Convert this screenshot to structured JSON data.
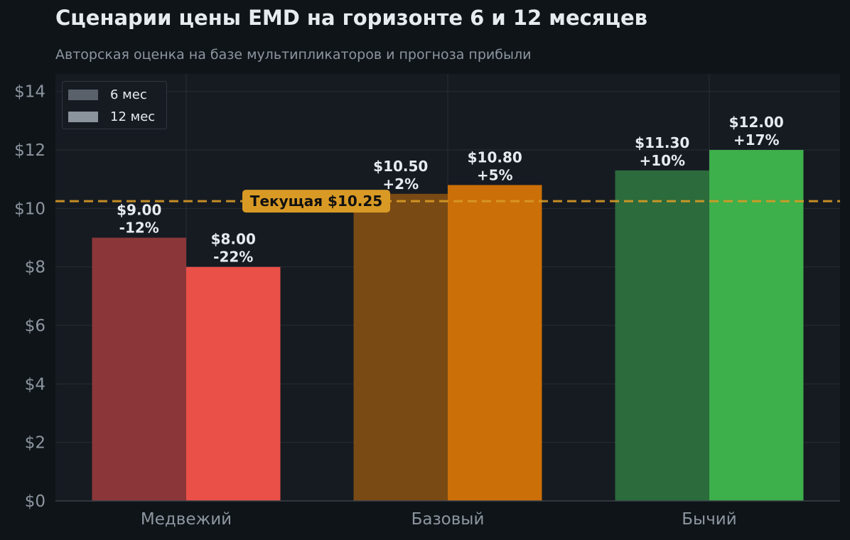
{
  "title": "Сценарии цены EMD на горизонте 6 и 12 месяцев",
  "subtitle": "Авторская оценка на базе мультипликаторов и прогноза прибыли",
  "colors": {
    "background": "#0f1418",
    "plot_background": "#161b22",
    "grid": "#262c33",
    "reference_line": "#d99a25",
    "text": "#e6ebef",
    "muted_text": "#8d96a0"
  },
  "chart_data": {
    "type": "bar",
    "categories": [
      "Медвежий",
      "Базовый",
      "Бычий"
    ],
    "series": [
      {
        "name": "6 мес",
        "values": [
          9.0,
          10.5,
          11.3
        ],
        "labels": [
          "$9.00\n-12%",
          "$10.50\n+2%",
          "$11.30\n+10%"
        ],
        "colors": [
          "#8b373a",
          "#7a4a14",
          "#2b6b3c"
        ],
        "legend_color": "#5a616b"
      },
      {
        "name": "12 мес",
        "values": [
          8.0,
          10.8,
          12.0
        ],
        "labels": [
          "$8.00\n-22%",
          "$10.80\n+5%",
          "$12.00\n+17%"
        ],
        "colors": [
          "#ea4f48",
          "#cb6f08",
          "#3daf4b"
        ],
        "legend_color": "#8b939c"
      }
    ],
    "reference_line": {
      "value": 10.25,
      "label": "Текущая $10.25"
    },
    "ylim": [
      0,
      14.6
    ],
    "yticks": [
      0,
      2,
      4,
      6,
      8,
      10,
      12,
      14
    ],
    "ytick_labels": [
      "$0",
      "$2",
      "$4",
      "$6",
      "$8",
      "$10",
      "$12",
      "$14"
    ],
    "xlabel": "",
    "ylabel": "",
    "grid": true,
    "legend_position": "top-left"
  }
}
